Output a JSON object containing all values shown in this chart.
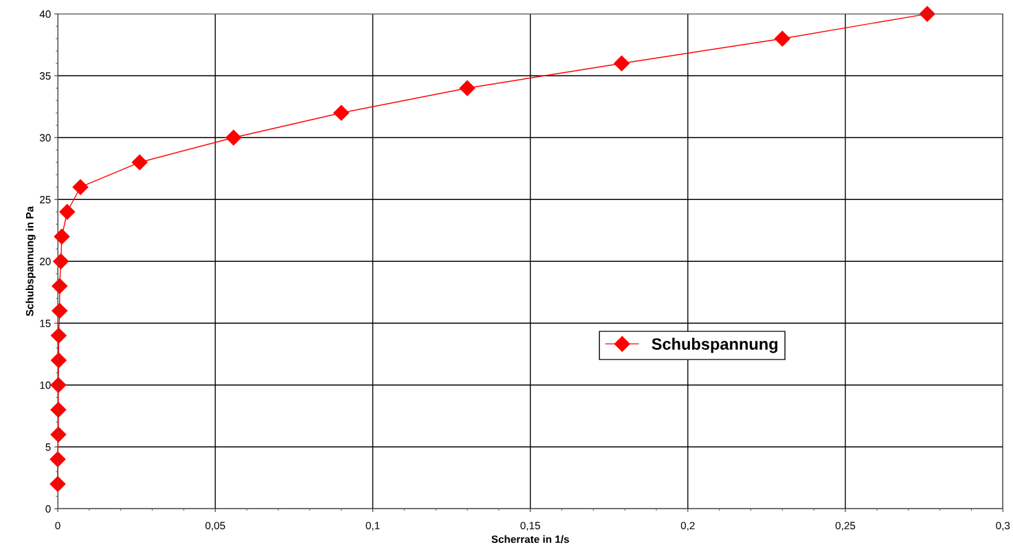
{
  "chart_data": {
    "type": "line",
    "xlabel": "Scherrate in 1/s",
    "ylabel": "Schubspannung in Pa",
    "x": [
      0,
      0,
      0.0002,
      0.0002,
      0.0002,
      0.0003,
      0.0003,
      0.0006,
      0.0006,
      0.001,
      0.0013,
      0.003,
      0.0072,
      0.026,
      0.0558,
      0.09,
      0.13,
      0.179,
      0.23,
      0.276
    ],
    "series": [
      {
        "name": "Schubspannung",
        "color": "#ff0000",
        "values": [
          2,
          4,
          6,
          8,
          10,
          12,
          14,
          16,
          18,
          20,
          22,
          24,
          26,
          28,
          30,
          32,
          34,
          36,
          38,
          40
        ]
      }
    ],
    "xlim": [
      0,
      0.3
    ],
    "ylim": [
      0,
      40
    ],
    "xticks": [
      {
        "value": 0,
        "label": "0"
      },
      {
        "value": 0.05,
        "label": "0,05"
      },
      {
        "value": 0.1,
        "label": "0,1"
      },
      {
        "value": 0.15,
        "label": "0,15"
      },
      {
        "value": 0.2,
        "label": "0,2"
      },
      {
        "value": 0.25,
        "label": "0,25"
      },
      {
        "value": 0.3,
        "label": "0,3"
      }
    ],
    "yticks": [
      0,
      5,
      10,
      15,
      20,
      25,
      30,
      35,
      40
    ],
    "grid": true,
    "legend": "right",
    "marker": "diamond",
    "line_style": "solid"
  }
}
